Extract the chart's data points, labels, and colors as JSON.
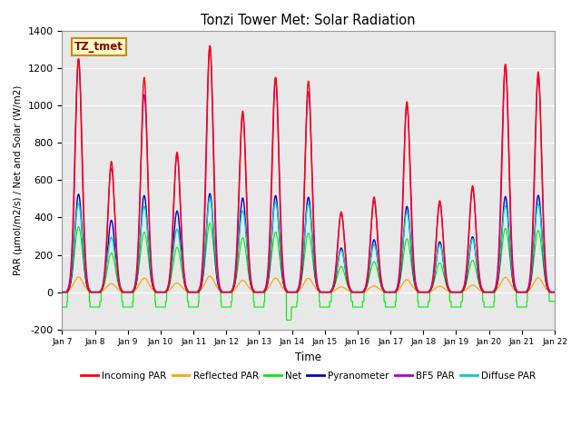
{
  "title": "Tonzi Tower Met: Solar Radiation",
  "ylabel": "PAR (μmol/m2/s) / Net and Solar (W/m2)",
  "xlabel": "Time",
  "annotation": "TZ_tmet",
  "ylim": [
    -200,
    1400
  ],
  "xlim": [
    0,
    15
  ],
  "xtick_labels": [
    "Jan 7",
    "Jan 8",
    "Jan 9",
    "Jan 10",
    "Jan 11",
    "Jan 12",
    "Jan 13",
    "Jan 14",
    "Jan 15",
    "Jan 16",
    "Jan 17",
    "Jan 18",
    "Jan 19",
    "Jan 20",
    "Jan 21",
    "Jan 22"
  ],
  "ytick_vals": [
    -200,
    0,
    200,
    400,
    600,
    800,
    1000,
    1200,
    1400
  ],
  "plot_bg_color": "#e8e8e8",
  "incoming_peaks": [
    1250,
    700,
    1150,
    750,
    1320,
    970,
    1150,
    1130,
    430,
    510,
    1020,
    490,
    570,
    1220,
    1180
  ],
  "incoming_color": "#ff0000",
  "reflected_color": "#ffa500",
  "net_color": "#00ee00",
  "pyrano_color": "#0000cc",
  "bf5_color": "#aa00cc",
  "diffuse_color": "#00cccc",
  "legend_labels": [
    "Incoming PAR",
    "Reflected PAR",
    "Net",
    "Pyranometer",
    "BF5 PAR",
    "Diffuse PAR"
  ]
}
